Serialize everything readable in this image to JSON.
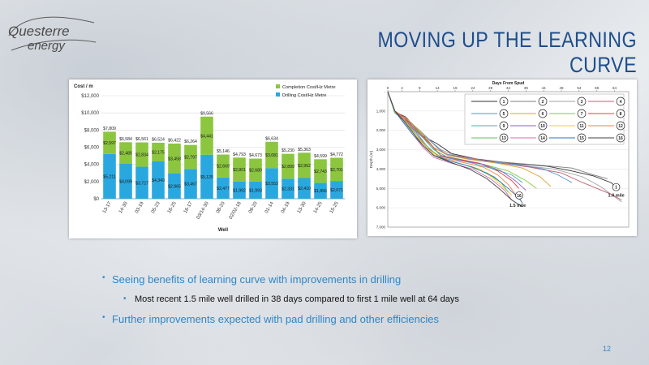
{
  "slide": {
    "title": "MOVING UP THE LEARNING CURVE",
    "page_number": "12",
    "logo_text_1": "Questerre",
    "logo_text_2": "energy",
    "bullets": [
      {
        "text": "Seeing benefits of learning curve with improvements in drilling",
        "level": 1
      },
      {
        "text": "Most recent 1.5 mile well drilled in 38 days compared to first 1 mile well at 64 days",
        "level": 2
      },
      {
        "text": "Further improvements expected with pad drilling and other efficiencies",
        "level": 1
      }
    ],
    "colors": {
      "title": "#1f4e8c",
      "bullet": "#2e86c8",
      "completion": "#8cc63f",
      "drilling": "#29a8e0"
    }
  },
  "chart_data": [
    {
      "type": "bar",
      "stacked": true,
      "ylabel": "Cost / m",
      "xlabel": "Well",
      "ylim": [
        0,
        12000
      ],
      "yticks": [
        "$0",
        "$2,000",
        "$4,000",
        "$6,000",
        "$8,000",
        "$10,000",
        "$12,000"
      ],
      "categories": [
        "13-17",
        "14-30",
        "03-19",
        "05-23",
        "16-25",
        "16-17",
        "03/14-30",
        "08-20",
        "02/02-18",
        "09-20",
        "01-14",
        "04-19",
        "13-30",
        "14-25",
        "15-25"
      ],
      "series": [
        {
          "name": "Drilling Cost/Hz Metre",
          "values": [
            5211,
            4099,
            3727,
            4349,
            2965,
            3467,
            5125,
            2477,
            1992,
            1993,
            3553,
            2331,
            2410,
            1856,
            2071
          ],
          "labels": [
            "$5,211",
            "$4,099",
            "$3,727",
            "$4,349",
            "$2,965",
            "$3,467",
            "$5,125",
            "$2,477",
            "$1,992",
            "$1,993",
            "$3,553",
            "$2,331",
            "$2,410",
            "$1,856",
            "$2,071"
          ]
        },
        {
          "name": "Completion Cost/Hz Metre",
          "values": [
            2597,
            2485,
            2834,
            2175,
            3458,
            2797,
            4441,
            2669,
            2801,
            2680,
            3081,
            2899,
            2952,
            2743,
            2701
          ],
          "labels": [
            "$2,597",
            "$2,485",
            "$2,834",
            "$2,175",
            "$3,458",
            "$2,797",
            "$4,441",
            "$2,669",
            "$2,801",
            "$2,680",
            "$3,081",
            "$2,899",
            "$2,952",
            "$2,743",
            "$2,701"
          ]
        }
      ],
      "totals": [
        "$7,809",
        "$6,584",
        "$6,561",
        "$6,524",
        "$6,422",
        "$6,264",
        "$9,566",
        "$5,146",
        "$4,793",
        "$4,673",
        "$6,634",
        "$5,230",
        "$5,363",
        "$4,599",
        "$4,772"
      ],
      "legend": "top-right"
    },
    {
      "type": "line",
      "title": "Days From Spud",
      "ylabel": "Depth (m)",
      "x_axis_position": "top",
      "xticks": [
        "0",
        "4",
        "9",
        "14",
        "19",
        "24",
        "29",
        "34",
        "39",
        "44",
        "49",
        "54",
        "59",
        "64"
      ],
      "xlim": [
        0,
        68
      ],
      "yticks": [
        "-",
        "1,000",
        "2,000",
        "3,000",
        "4,000",
        "5,000",
        "6,000",
        "7,000"
      ],
      "ylim": [
        0,
        7000
      ],
      "y_inverted": true,
      "legend": "top-right",
      "legend_labels": [
        "1",
        "2",
        "3",
        "4",
        "5",
        "6",
        "7",
        "8",
        "9",
        "10",
        "11",
        "12",
        "13",
        "14",
        "15",
        "16"
      ],
      "annotations": [
        "1.0 mile",
        "1.5 mile"
      ],
      "series": [
        {
          "name": "1",
          "color": "#333333",
          "points": [
            [
              0,
              0
            ],
            [
              2,
              1050
            ],
            [
              5,
              1300
            ],
            [
              10,
              2300
            ],
            [
              14,
              2700
            ],
            [
              18,
              3200
            ],
            [
              25,
              3480
            ],
            [
              35,
              3700
            ],
            [
              45,
              3850
            ],
            [
              52,
              4100
            ],
            [
              58,
              4350
            ],
            [
              63,
              4700
            ],
            [
              64,
              4850
            ]
          ]
        },
        {
          "name": "2",
          "color": "#7f7f7f",
          "points": [
            [
              0,
              0
            ],
            [
              2,
              1000
            ],
            [
              6,
              1500
            ],
            [
              10,
              2200
            ],
            [
              14,
              2900
            ],
            [
              17,
              3300
            ],
            [
              24,
              3500
            ],
            [
              33,
              3650
            ],
            [
              43,
              3800
            ],
            [
              52,
              3950
            ],
            [
              58,
              4300
            ],
            [
              62,
              4500
            ]
          ]
        },
        {
          "name": "3",
          "color": "#a0a0a0",
          "points": [
            [
              0,
              0
            ],
            [
              2,
              1100
            ],
            [
              7,
              1700
            ],
            [
              11,
              2400
            ],
            [
              15,
              3000
            ],
            [
              19,
              3300
            ],
            [
              27,
              3550
            ],
            [
              37,
              3800
            ],
            [
              47,
              4000
            ],
            [
              55,
              4400
            ],
            [
              60,
              4900
            ],
            [
              66,
              5700
            ]
          ]
        },
        {
          "name": "4",
          "color": "#c06070",
          "points": [
            [
              0,
              0
            ],
            [
              2,
              1100
            ],
            [
              6,
              1600
            ],
            [
              10,
              2300
            ],
            [
              13,
              2900
            ],
            [
              17,
              3250
            ],
            [
              24,
              3450
            ],
            [
              32,
              3700
            ],
            [
              40,
              3900
            ],
            [
              49,
              4200
            ],
            [
              55,
              4700
            ],
            [
              63,
              5300
            ],
            [
              66,
              5600
            ]
          ]
        },
        {
          "name": "5",
          "color": "#5a8fd0",
          "points": [
            [
              0,
              0
            ],
            [
              2,
              1000
            ],
            [
              5,
              1400
            ],
            [
              9,
              2000
            ],
            [
              13,
              2700
            ],
            [
              16,
              3200
            ],
            [
              22,
              3450
            ],
            [
              30,
              3650
            ],
            [
              38,
              3800
            ],
            [
              44,
              4000
            ],
            [
              48,
              4300
            ],
            [
              52,
              4700
            ]
          ]
        },
        {
          "name": "6",
          "color": "#e0a030",
          "points": [
            [
              0,
              0
            ],
            [
              2,
              1000
            ],
            [
              6,
              1500
            ],
            [
              10,
              2200
            ],
            [
              13,
              2900
            ],
            [
              17,
              3300
            ],
            [
              23,
              3500
            ],
            [
              31,
              3700
            ],
            [
              38,
              3950
            ],
            [
              43,
              4400
            ],
            [
              46,
              4900
            ]
          ]
        },
        {
          "name": "7",
          "color": "#8cc63f",
          "points": [
            [
              0,
              0
            ],
            [
              2,
              1050
            ],
            [
              5,
              1500
            ],
            [
              9,
              2100
            ],
            [
              12,
              2800
            ],
            [
              15,
              3300
            ],
            [
              22,
              3550
            ],
            [
              28,
              3800
            ],
            [
              34,
              4100
            ],
            [
              39,
              4600
            ],
            [
              42,
              5000
            ]
          ]
        },
        {
          "name": "8",
          "color": "#e04040",
          "points": [
            [
              0,
              0
            ],
            [
              2,
              1000
            ],
            [
              5,
              1400
            ],
            [
              8,
              2000
            ],
            [
              12,
              2700
            ],
            [
              15,
              3300
            ],
            [
              20,
              3500
            ],
            [
              26,
              3700
            ],
            [
              31,
              4100
            ],
            [
              35,
              4600
            ],
            [
              37,
              5000
            ]
          ]
        },
        {
          "name": "9",
          "color": "#40b0b0",
          "points": [
            [
              0,
              0
            ],
            [
              2,
              1100
            ],
            [
              6,
              1700
            ],
            [
              10,
              2400
            ],
            [
              13,
              3000
            ],
            [
              17,
              3400
            ],
            [
              24,
              3700
            ],
            [
              30,
              4000
            ],
            [
              35,
              4300
            ],
            [
              38,
              4700
            ]
          ]
        },
        {
          "name": "10",
          "color": "#9060c0",
          "points": [
            [
              0,
              0
            ],
            [
              2,
              1000
            ],
            [
              5,
              1500
            ],
            [
              8,
              2100
            ],
            [
              11,
              2800
            ],
            [
              14,
              3300
            ],
            [
              20,
              3550
            ],
            [
              27,
              3750
            ],
            [
              32,
              4100
            ],
            [
              36,
              4600
            ],
            [
              39,
              5100
            ]
          ]
        },
        {
          "name": "11",
          "color": "#f0d020",
          "points": [
            [
              0,
              0
            ],
            [
              2,
              1050
            ],
            [
              5,
              1600
            ],
            [
              8,
              2300
            ],
            [
              11,
              2900
            ],
            [
              14,
              3400
            ],
            [
              20,
              3700
            ],
            [
              26,
              4000
            ],
            [
              30,
              4500
            ],
            [
              33,
              5000
            ],
            [
              35,
              5350
            ]
          ]
        },
        {
          "name": "12",
          "color": "#f08040",
          "points": [
            [
              0,
              0
            ],
            [
              2,
              1000
            ],
            [
              5,
              1500
            ],
            [
              8,
              2200
            ],
            [
              11,
              2900
            ],
            [
              15,
              3400
            ],
            [
              21,
              3650
            ],
            [
              27,
              3900
            ],
            [
              31,
              4300
            ],
            [
              34,
              4800
            ],
            [
              36,
              5300
            ]
          ]
        },
        {
          "name": "13",
          "color": "#60c060",
          "points": [
            [
              0,
              0
            ],
            [
              2,
              1000
            ],
            [
              5,
              1600
            ],
            [
              9,
              2400
            ],
            [
              12,
              3000
            ],
            [
              16,
              3500
            ],
            [
              22,
              3800
            ],
            [
              28,
              4200
            ],
            [
              32,
              4700
            ],
            [
              34,
              5200
            ]
          ]
        },
        {
          "name": "14",
          "color": "#d070b0",
          "points": [
            [
              0,
              0
            ],
            [
              2,
              1000
            ],
            [
              4,
              1500
            ],
            [
              7,
              2200
            ],
            [
              10,
              2900
            ],
            [
              13,
              3400
            ],
            [
              18,
              3700
            ],
            [
              24,
              4000
            ],
            [
              29,
              4500
            ],
            [
              33,
              5100
            ],
            [
              35,
              5600
            ]
          ]
        },
        {
          "name": "15",
          "color": "#3070c0",
          "points": [
            [
              0,
              0
            ],
            [
              2,
              1000
            ],
            [
              4,
              1500
            ],
            [
              7,
              2200
            ],
            [
              10,
              2800
            ],
            [
              13,
              3300
            ],
            [
              18,
              3600
            ],
            [
              24,
              3900
            ],
            [
              30,
              4400
            ],
            [
              34,
              5000
            ],
            [
              37,
              5500
            ],
            [
              38,
              5750
            ]
          ]
        },
        {
          "name": "16",
          "color": "#404040",
          "points": [
            [
              0,
              0
            ],
            [
              2,
              1000
            ],
            [
              4,
              1400
            ],
            [
              7,
              2100
            ],
            [
              10,
              2800
            ],
            [
              13,
              3300
            ],
            [
              17,
              3600
            ],
            [
              23,
              4000
            ],
            [
              28,
              4500
            ],
            [
              32,
              5100
            ],
            [
              35,
              5600
            ],
            [
              38,
              5950
            ]
          ]
        }
      ]
    }
  ]
}
